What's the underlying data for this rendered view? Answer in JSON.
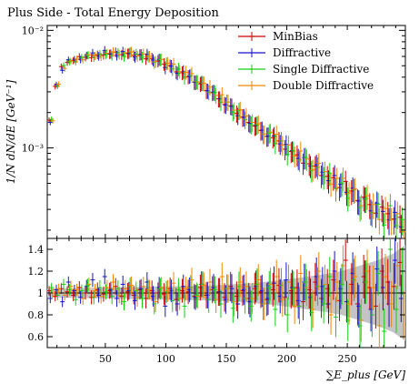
{
  "chart_data": {
    "type": "scatter",
    "title": "Plus Side - Total Energy Deposition",
    "xlabel": "∑E_plus [GeV]",
    "ylabel": "1/N dN/dE [GeV⁻¹]",
    "xlim": [
      2,
      298
    ],
    "x_ticks": [
      50,
      100,
      150,
      200,
      250
    ],
    "top_panel": {
      "yscale": "log",
      "ylim": [
        0.00017,
        0.011
      ],
      "y_ticks": [
        {
          "value": 0.01,
          "label": "10⁻²"
        },
        {
          "value": 0.001,
          "label": "10⁻³"
        }
      ]
    },
    "ratio_panel": {
      "ylim": [
        0.5,
        1.5
      ],
      "y_ticks": [
        0.6,
        0.8,
        1,
        1.2,
        1.4
      ],
      "reference_line": 1,
      "band_low": [
        0.96,
        0.95,
        0.94,
        0.93,
        0.91,
        0.89,
        0.86,
        0.83,
        0.8,
        0.75,
        0.7,
        0.64,
        0.56
      ],
      "band_high": [
        1.04,
        1.05,
        1.06,
        1.07,
        1.09,
        1.11,
        1.14,
        1.17,
        1.2,
        1.25,
        1.3,
        1.36,
        1.44
      ],
      "band_x": [
        0,
        50,
        100,
        140,
        170,
        190,
        210,
        230,
        245,
        260,
        275,
        288,
        300
      ]
    },
    "data": {
      "x": [
        5,
        10,
        15,
        20,
        25,
        30,
        35,
        40,
        45,
        50,
        55,
        60,
        65,
        70,
        75,
        80,
        85,
        90,
        95,
        100,
        105,
        110,
        115,
        120,
        125,
        130,
        135,
        140,
        145,
        150,
        155,
        160,
        165,
        170,
        175,
        180,
        185,
        190,
        195,
        200,
        205,
        210,
        215,
        220,
        225,
        230,
        235,
        240,
        245,
        250,
        255,
        260,
        265,
        270,
        275,
        280,
        285,
        290,
        295
      ],
      "y": [
        0.0017,
        0.0034,
        0.0048,
        0.0053,
        0.0056,
        0.0058,
        0.0059,
        0.006,
        0.0061,
        0.0062,
        0.0062,
        0.0063,
        0.0063,
        0.0063,
        0.0062,
        0.0061,
        0.0059,
        0.0057,
        0.0055,
        0.0052,
        0.0049,
        0.0046,
        0.0043,
        0.004,
        0.0037,
        0.0034,
        0.0031,
        0.0029,
        0.0026,
        0.0024,
        0.0022,
        0.002,
        0.0018,
        0.0017,
        0.0015,
        0.0014,
        0.0013,
        0.0012,
        0.0011,
        0.001,
        0.00092,
        0.00085,
        0.00078,
        0.00072,
        0.00066,
        0.0006,
        0.00056,
        0.00052,
        0.00048,
        0.00044,
        0.00041,
        0.00038,
        0.00035,
        0.00032,
        0.0003,
        0.00028,
        0.00026,
        0.00024,
        0.00022
      ]
    },
    "series": [
      {
        "name": "MinBias",
        "color": "#cc0000",
        "offset": 0,
        "ratio_jitter": [
          0.02,
          -0.03,
          0.04,
          0.01,
          -0.02,
          0.05,
          0.0,
          -0.04,
          0.03,
          -0.01,
          0.02,
          0.06,
          -0.03,
          0.01,
          -0.02,
          0.03,
          -0.05,
          0.02,
          0.0,
          -0.01,
          0.04,
          -0.06,
          0.02,
          0.01,
          -0.03,
          0.05,
          -0.02,
          0.03,
          0.01,
          -0.04,
          0.06,
          -0.03,
          0.02,
          -0.05,
          0.04,
          0.01,
          -0.06,
          0.03,
          0.07,
          -0.04,
          0.02,
          0.05,
          -0.08,
          0.03,
          0.1,
          -0.05,
          0.04,
          0.12,
          -0.07,
          0.3,
          0.08,
          -0.1,
          0.15,
          0.05,
          -0.12,
          0.2,
          0.1,
          0.06,
          0.28
        ]
      },
      {
        "name": "Diffractive",
        "color": "#1414cc",
        "offset": 1,
        "ratio_jitter": [
          -0.05,
          0.03,
          -0.08,
          0.1,
          0.02,
          -0.04,
          0.06,
          0.12,
          -0.02,
          0.15,
          0.03,
          -0.05,
          0.08,
          0.02,
          -0.07,
          0.04,
          0.1,
          -0.03,
          0.05,
          -0.12,
          0.02,
          -0.1,
          0.06,
          0.03,
          -0.04,
          0.08,
          -0.02,
          0.05,
          0.01,
          -0.06,
          0.04,
          -0.1,
          0.03,
          -0.08,
          0.06,
          0.02,
          -0.05,
          0.09,
          -0.03,
          0.12,
          0.05,
          -0.07,
          0.1,
          -0.04,
          0.15,
          0.06,
          -0.1,
          0.2,
          0.04,
          -0.08,
          0.18,
          -0.12,
          0.1,
          -0.15,
          0.22,
          0.05,
          -0.1,
          0.3,
          -0.05
        ]
      },
      {
        "name": "Single Diffractive",
        "color": "#14cc14",
        "offset": 2,
        "ratio_jitter": [
          0.05,
          -0.02,
          0.08,
          0.03,
          -0.06,
          0.02,
          0.07,
          -0.04,
          0.05,
          0.01,
          -0.03,
          0.04,
          -0.08,
          0.06,
          0.02,
          -0.05,
          0.03,
          -0.1,
          0.04,
          0.01,
          -0.07,
          0.03,
          -0.12,
          0.05,
          -0.02,
          0.08,
          -0.06,
          0.03,
          -0.1,
          0.04,
          -0.14,
          0.06,
          -0.05,
          -0.12,
          0.08,
          -0.1,
          0.05,
          -0.15,
          0.07,
          -0.2,
          0.04,
          -0.12,
          0.1,
          -0.18,
          0.06,
          -0.1,
          0.15,
          -0.22,
          0.08,
          -0.25,
          0.12,
          -0.3,
          0.1,
          -0.2,
          0.18,
          -0.35,
          0.4,
          -0.15,
          0.2
        ]
      },
      {
        "name": "Double Diffractive",
        "color": "#ee8800",
        "offset": 3,
        "ratio_jitter": [
          0.0,
          0.04,
          -0.02,
          0.06,
          0.03,
          -0.05,
          0.08,
          0.02,
          -0.03,
          0.05,
          0.1,
          -0.02,
          0.04,
          0.07,
          -0.04,
          0.06,
          0.03,
          -0.08,
          0.05,
          0.02,
          0.09,
          -0.05,
          0.04,
          0.12,
          -0.03,
          0.07,
          0.1,
          -0.06,
          0.15,
          0.04,
          -0.08,
          0.1,
          0.06,
          -0.05,
          0.12,
          -0.1,
          0.08,
          0.15,
          -0.06,
          0.1,
          -0.12,
          0.18,
          0.05,
          -0.15,
          0.2,
          0.08,
          -0.2,
          0.1,
          0.25,
          -0.1,
          0.15,
          -0.25,
          0.2,
          0.05,
          -0.3,
          0.15,
          -0.1,
          0.25,
          -0.2
        ]
      }
    ]
  }
}
